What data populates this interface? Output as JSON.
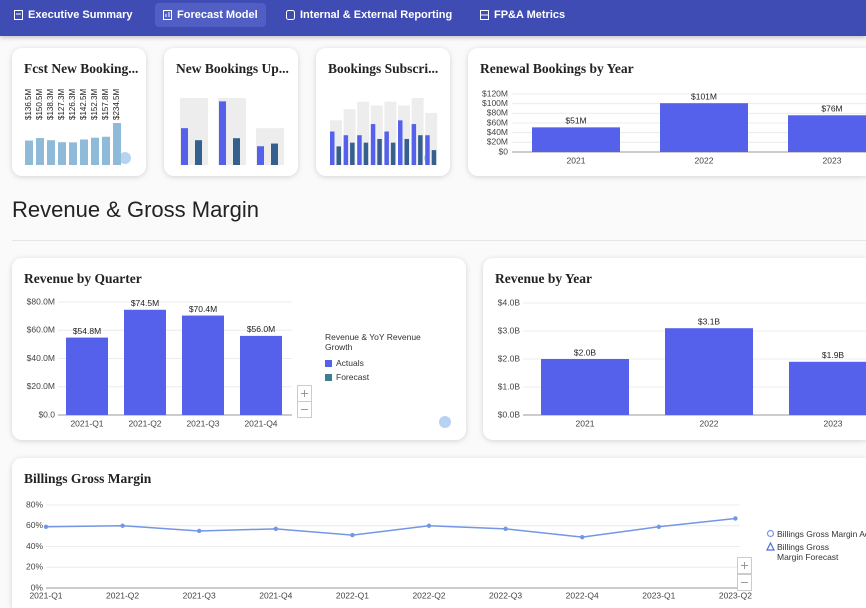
{
  "nav": {
    "tabs": [
      "Executive Summary",
      "Forecast Model",
      "Internal & External Reporting",
      "FP&A Metrics"
    ]
  },
  "section_title": "Revenue & Gross Margin",
  "chart_data": [
    {
      "type": "bar",
      "title": "Fcst New Booking...",
      "color": "#8fbad8",
      "values": [
        136.5,
        150.5,
        138.3,
        127.3,
        126.3,
        142.5,
        152.3,
        157.8,
        234.5
      ],
      "value_labels": [
        "$136.5M",
        "$150.5M",
        "$138.3M",
        "$127.3M",
        "$126.3M",
        "$142.5M",
        "$152.3M",
        "$157.8M",
        "$234.5M"
      ]
    },
    {
      "type": "bar",
      "title": "New Bookings Up...",
      "series": [
        {
          "color": "#ededed",
          "values": [
            100,
            100,
            55
          ]
        },
        {
          "color": "#5561ea",
          "values": [
            55,
            95,
            28
          ]
        },
        {
          "color": "#355f8c",
          "values": [
            37,
            40,
            32
          ]
        }
      ]
    },
    {
      "type": "bar",
      "title": "Bookings Subscri...",
      "series": [
        {
          "color": "#ededed",
          "values": [
            60,
            75,
            85,
            80,
            85,
            80,
            90,
            70
          ]
        },
        {
          "color": "#5561ea",
          "values": [
            45,
            40,
            40,
            55,
            45,
            60,
            55,
            40
          ]
        },
        {
          "color": "#355f8c",
          "values": [
            25,
            30,
            30,
            35,
            30,
            35,
            40,
            20
          ]
        }
      ]
    },
    {
      "type": "bar",
      "title": "Renewal Bookings by Year",
      "color": "#5561ea",
      "grid": true,
      "categories": [
        "2021",
        "2022",
        "2023"
      ],
      "values": [
        51,
        101,
        76
      ],
      "value_labels": [
        "$51M",
        "$101M",
        "$76M"
      ],
      "ylim": [
        0,
        120
      ],
      "yticks": [
        {
          "value": 0,
          "label": "$0"
        },
        {
          "value": 20,
          "label": "$20M"
        },
        {
          "value": 40,
          "label": "$40M"
        },
        {
          "value": 60,
          "label": "$60M"
        },
        {
          "value": 80,
          "label": "$80M"
        },
        {
          "value": 100,
          "label": "$100M"
        },
        {
          "value": 120,
          "label": "$120M"
        }
      ]
    },
    {
      "type": "bar",
      "title": "Revenue by Quarter",
      "grid": true,
      "legend_title": "Revenue & YoY Revenue Growth",
      "categories": [
        "2021-Q1",
        "2021-Q2",
        "2021-Q3",
        "2021-Q4"
      ],
      "series": [
        {
          "name": "Actuals",
          "color": "#5561ea",
          "values": [
            54.8,
            74.5,
            70.4,
            56.0
          ],
          "value_labels": [
            "$54.8M",
            "$74.5M",
            "$70.4M",
            "$56.0M"
          ]
        },
        {
          "name": "Forecast",
          "color": "#3b7f91",
          "values": [
            null,
            null,
            null,
            null
          ]
        }
      ],
      "ylim": [
        0,
        80
      ],
      "yticks": [
        {
          "value": 0,
          "label": "$0.0"
        },
        {
          "value": 20,
          "label": "$20.0M"
        },
        {
          "value": 40,
          "label": "$40.0M"
        },
        {
          "value": 60,
          "label": "$60.0M"
        },
        {
          "value": 80,
          "label": "$80.0M"
        }
      ]
    },
    {
      "type": "bar",
      "title": "Revenue by Year",
      "color": "#5561ea",
      "grid": true,
      "categories": [
        "2021",
        "2022",
        "2023"
      ],
      "values": [
        2.0,
        3.1,
        1.9
      ],
      "value_labels": [
        "$2.0B",
        "$3.1B",
        "$1.9B"
      ],
      "ylim": [
        0,
        4
      ],
      "yticks": [
        {
          "value": 0,
          "label": "$0.0B"
        },
        {
          "value": 1,
          "label": "$1.0B"
        },
        {
          "value": 2,
          "label": "$2.0B"
        },
        {
          "value": 3,
          "label": "$3.0B"
        },
        {
          "value": 4,
          "label": "$4.0B"
        }
      ]
    },
    {
      "type": "line",
      "title": "Billings Gross Margin",
      "grid": true,
      "categories": [
        "2021-Q1",
        "2021-Q2",
        "2021-Q3",
        "2021-Q4",
        "2022-Q1",
        "2022-Q2",
        "2022-Q3",
        "2022-Q4",
        "2023-Q1",
        "2023-Q2"
      ],
      "series": [
        {
          "name": "Billings Gross Margin Actuals",
          "color": "#7496e6",
          "values": [
            59,
            60,
            55,
            57,
            51,
            60,
            57,
            49,
            59,
            67
          ]
        },
        {
          "name": "Billings Gross Margin Forecast",
          "color": "#4f6fd0",
          "values": [
            null,
            null,
            null,
            null,
            null,
            null,
            null,
            null,
            null,
            null
          ]
        }
      ],
      "ylim": [
        0,
        80
      ],
      "yticks": [
        {
          "value": 0,
          "label": "0%"
        },
        {
          "value": 20,
          "label": "20%"
        },
        {
          "value": 40,
          "label": "40%"
        },
        {
          "value": 60,
          "label": "60%"
        },
        {
          "value": 80,
          "label": "80%"
        }
      ]
    }
  ]
}
